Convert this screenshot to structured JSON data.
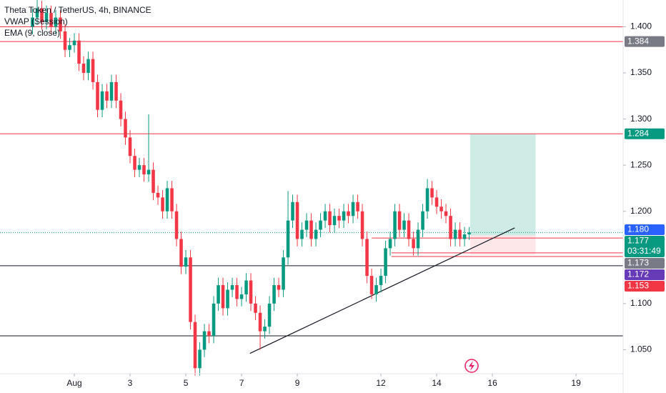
{
  "chart_data": {
    "type": "candlestick",
    "title": "Theta Token / TetherUS, 4h, BINANCE",
    "indicators": [
      "VWAP (Session)",
      "EMA (9, close)"
    ],
    "x": [
      -0.5,
      -0.333,
      -0.167,
      0,
      0.167,
      0.333,
      0.5,
      0.667,
      0.833,
      1,
      1.167,
      1.333,
      1.5,
      1.667,
      1.833,
      2,
      2.167,
      2.333,
      2.5,
      2.667,
      2.833,
      3,
      3.167,
      3.333,
      3.5,
      3.667,
      3.833,
      4,
      4.167,
      4.333,
      4.5,
      4.667,
      4.833,
      5,
      5.167,
      5.333,
      5.5,
      5.667,
      5.833,
      6,
      6.167,
      6.333,
      6.5,
      6.667,
      6.833,
      7,
      7.167,
      7.333,
      7.5,
      7.667,
      7.833,
      8,
      8.167,
      8.333,
      8.5,
      8.667,
      8.833,
      9,
      9.167,
      9.333,
      9.5,
      9.667,
      9.833,
      10,
      10.167,
      10.333,
      10.5,
      10.667,
      10.833,
      11,
      11.167,
      11.333,
      11.5,
      11.667,
      11.833,
      12,
      12.167,
      12.333,
      12.5,
      12.667,
      12.833,
      13,
      13.167,
      13.333,
      13.5,
      13.667,
      13.833,
      14,
      14.167,
      14.333,
      14.5,
      14.667,
      14.833,
      15,
      15.167
    ],
    "open": [
      1.4,
      1.41,
      1.42,
      1.405,
      1.415,
      1.4,
      1.41,
      1.395,
      1.375,
      1.38,
      1.385,
      1.36,
      1.35,
      1.365,
      1.34,
      1.31,
      1.33,
      1.32,
      1.34,
      1.32,
      1.3,
      1.28,
      1.26,
      1.245,
      1.25,
      1.24,
      1.245,
      1.22,
      1.215,
      1.2,
      1.225,
      1.2,
      1.17,
      1.14,
      1.15,
      1.08,
      1.03,
      1.05,
      1.07,
      1.065,
      1.1,
      1.12,
      1.095,
      1.115,
      1.12,
      1.105,
      1.11,
      1.125,
      1.1,
      1.09,
      1.07,
      1.075,
      1.1,
      1.12,
      1.115,
      1.15,
      1.19,
      1.21,
      1.17,
      1.18,
      1.19,
      1.17,
      1.18,
      1.19,
      1.2,
      1.185,
      1.195,
      1.19,
      1.2,
      1.195,
      1.21,
      1.2,
      1.17,
      1.13,
      1.11,
      1.12,
      1.13,
      1.16,
      1.17,
      1.2,
      1.18,
      1.19,
      1.17,
      1.16,
      1.18,
      1.2,
      1.225,
      1.215,
      1.205,
      1.2,
      1.195,
      1.17,
      1.18,
      1.17,
      1.175
    ],
    "high": [
      1.42,
      1.43,
      1.428,
      1.423,
      1.423,
      1.418,
      1.418,
      1.403,
      1.388,
      1.393,
      1.393,
      1.368,
      1.373,
      1.373,
      1.348,
      1.338,
      1.338,
      1.348,
      1.348,
      1.328,
      1.308,
      1.288,
      1.268,
      1.258,
      1.258,
      1.305,
      1.253,
      1.228,
      1.223,
      1.233,
      1.233,
      1.208,
      1.178,
      1.158,
      1.158,
      1.088,
      1.058,
      1.078,
      1.078,
      1.108,
      1.128,
      1.128,
      1.123,
      1.128,
      1.128,
      1.118,
      1.133,
      1.133,
      1.108,
      1.098,
      1.083,
      1.108,
      1.128,
      1.128,
      1.158,
      1.222,
      1.218,
      1.218,
      1.188,
      1.198,
      1.198,
      1.188,
      1.198,
      1.208,
      1.208,
      1.203,
      1.203,
      1.208,
      1.208,
      1.218,
      1.218,
      1.208,
      1.178,
      1.138,
      1.128,
      1.138,
      1.168,
      1.178,
      1.208,
      1.208,
      1.198,
      1.198,
      1.178,
      1.188,
      1.208,
      1.235,
      1.233,
      1.223,
      1.213,
      1.208,
      1.203,
      1.188,
      1.188,
      1.183,
      1.183
    ],
    "low": [
      1.392,
      1.402,
      1.397,
      1.397,
      1.392,
      1.392,
      1.387,
      1.367,
      1.367,
      1.372,
      1.352,
      1.342,
      1.342,
      1.332,
      1.302,
      1.302,
      1.312,
      1.312,
      1.312,
      1.292,
      1.272,
      1.252,
      1.237,
      1.237,
      1.232,
      1.232,
      1.212,
      1.207,
      1.192,
      1.192,
      1.192,
      1.162,
      1.132,
      1.132,
      1.072,
      1.022,
      1.022,
      1.042,
      1.057,
      1.057,
      1.092,
      1.087,
      1.087,
      1.107,
      1.097,
      1.097,
      1.102,
      1.092,
      1.082,
      1.05,
      1.062,
      1.067,
      1.092,
      1.107,
      1.107,
      1.142,
      1.182,
      1.162,
      1.162,
      1.172,
      1.162,
      1.162,
      1.172,
      1.182,
      1.177,
      1.177,
      1.182,
      1.182,
      1.187,
      1.187,
      1.192,
      1.162,
      1.122,
      1.105,
      1.102,
      1.112,
      1.122,
      1.152,
      1.162,
      1.172,
      1.172,
      1.162,
      1.152,
      1.152,
      1.172,
      1.192,
      1.207,
      1.197,
      1.192,
      1.187,
      1.162,
      1.162,
      1.162,
      1.162,
      1.169
    ],
    "close": [
      1.41,
      1.42,
      1.405,
      1.415,
      1.4,
      1.41,
      1.395,
      1.375,
      1.38,
      1.385,
      1.36,
      1.35,
      1.365,
      1.34,
      1.31,
      1.33,
      1.32,
      1.34,
      1.32,
      1.3,
      1.28,
      1.26,
      1.245,
      1.25,
      1.24,
      1.245,
      1.22,
      1.215,
      1.2,
      1.225,
      1.2,
      1.17,
      1.14,
      1.15,
      1.08,
      1.03,
      1.05,
      1.07,
      1.065,
      1.1,
      1.12,
      1.095,
      1.115,
      1.12,
      1.105,
      1.11,
      1.125,
      1.1,
      1.09,
      1.07,
      1.075,
      1.1,
      1.12,
      1.115,
      1.15,
      1.19,
      1.21,
      1.17,
      1.18,
      1.19,
      1.17,
      1.18,
      1.19,
      1.2,
      1.185,
      1.195,
      1.19,
      1.2,
      1.195,
      1.21,
      1.2,
      1.17,
      1.13,
      1.11,
      1.12,
      1.13,
      1.16,
      1.17,
      1.2,
      1.18,
      1.19,
      1.17,
      1.16,
      1.18,
      1.2,
      1.225,
      1.215,
      1.205,
      1.2,
      1.195,
      1.17,
      1.18,
      1.17,
      1.175,
      1.177
    ],
    "up_color": "#089981",
    "down_color": "#f23645",
    "xlim": [
      -1.667,
      20.69
    ],
    "ylim": [
      1.024,
      1.429
    ],
    "xticks": [
      {
        "value": 1,
        "label": "Aug"
      },
      3,
      5,
      7,
      9,
      12,
      14,
      16,
      19
    ],
    "yticks": [
      {
        "value": 1.4,
        "label": "1.400"
      },
      {
        "value": 1.35,
        "label": "1.350"
      },
      {
        "value": 1.3,
        "label": "1.300"
      },
      {
        "value": 1.25,
        "label": "1.250"
      },
      {
        "value": 1.2,
        "label": "1.200"
      },
      {
        "value": 1.1,
        "label": "1.100"
      },
      {
        "value": 1.05,
        "label": "1.050"
      }
    ],
    "horizontal_lines": [
      {
        "value": 1.4,
        "from": -1.667,
        "color": "#f23645"
      },
      {
        "value": 1.384,
        "from": -1.667,
        "color": "#f23645"
      },
      {
        "value": 1.284,
        "from": -1.667,
        "color": "#f23645"
      },
      {
        "value": 1.141,
        "from": -1.667,
        "color": "#131722"
      },
      {
        "value": 1.065,
        "from": -1.667,
        "color": "#131722"
      },
      {
        "value": 1.171,
        "from": 11.67,
        "color": "#f23645"
      },
      {
        "value": 1.155,
        "from": 12.38,
        "color": "#f23645"
      },
      {
        "value": 1.151,
        "from": 12.38,
        "color": "#f23645"
      }
    ],
    "trend_line": {
      "x": [
        7.3,
        16.8
      ],
      "y": [
        1.046,
        1.182
      ]
    },
    "position": {
      "x": [
        15.2,
        17.55
      ],
      "entry": 1.174,
      "target": 1.284,
      "stop": 1.153
    },
    "last_price": 1.177,
    "countdown": "03:31:49",
    "price_tags": [
      {
        "value": 1.384,
        "label": "1.384",
        "color": "#787b86"
      },
      {
        "value": 1.284,
        "label": "1.284",
        "color": "#089981"
      },
      {
        "value": 1.18,
        "label": "1.180",
        "color": "#2962ff"
      },
      {
        "value": 1.177,
        "label": "1.177",
        "color": "#089981"
      },
      {
        "value": 1.173,
        "label": "1.173",
        "color": "#787b86"
      },
      {
        "value": 1.172,
        "label": "1.172",
        "color": "#673ab7"
      },
      {
        "value": 1.153,
        "label": "1.153",
        "color": "#f23645"
      }
    ]
  }
}
